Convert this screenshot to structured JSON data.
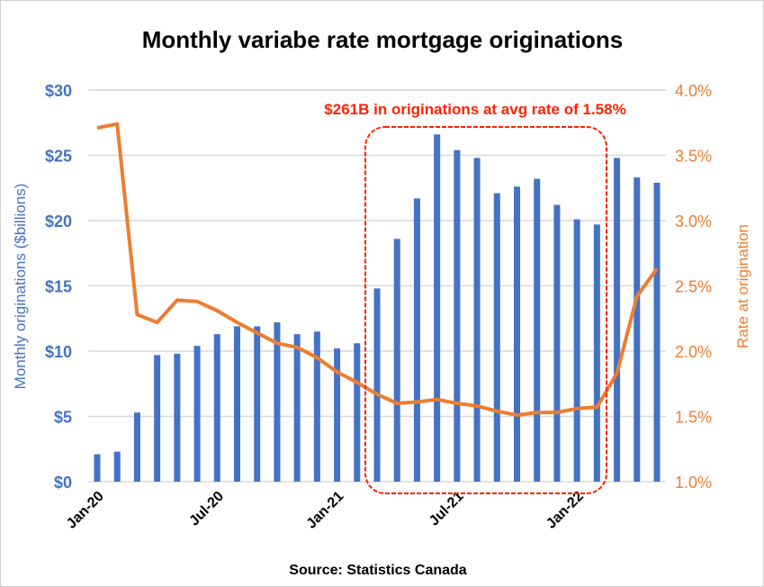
{
  "chart_data": {
    "type": "bar+line",
    "title": "Monthly variabe rate mortgage originations",
    "source": "Source: Statistics Canada",
    "ylabel_left": "Monthly originations ($billions)",
    "ylabel_right": "Rate at origination",
    "ylim_left": [
      0,
      30
    ],
    "ylim_right": [
      1.0,
      4.0
    ],
    "yticks_left": [
      "$0",
      "$5",
      "$10",
      "$15",
      "$20",
      "$25",
      "$30"
    ],
    "yticks_right": [
      "1.0%",
      "1.5%",
      "2.0%",
      "2.5%",
      "3.0%",
      "3.5%",
      "4.0%"
    ],
    "grid": true,
    "categories": [
      "Jan-20",
      "Feb-20",
      "Mar-20",
      "Apr-20",
      "May-20",
      "Jun-20",
      "Jul-20",
      "Aug-20",
      "Sep-20",
      "Oct-20",
      "Nov-20",
      "Dec-20",
      "Jan-21",
      "Feb-21",
      "Mar-21",
      "Apr-21",
      "May-21",
      "Jun-21",
      "Jul-21",
      "Aug-21",
      "Sep-21",
      "Oct-21",
      "Nov-21",
      "Dec-21",
      "Jan-22",
      "Feb-22",
      "Mar-22",
      "Apr-22",
      "May-22"
    ],
    "xtick_labels": [
      "Jan-20",
      "Jul-20",
      "Jan-21",
      "Jul-21",
      "Jan-22"
    ],
    "series": [
      {
        "name": "Monthly originations ($billions)",
        "type": "bar",
        "axis": "left",
        "color": "#4472C4",
        "values": [
          2.1,
          2.3,
          5.3,
          9.7,
          9.8,
          10.4,
          11.3,
          11.9,
          11.9,
          12.2,
          11.3,
          11.5,
          10.2,
          10.6,
          14.8,
          18.6,
          21.7,
          26.6,
          25.4,
          24.8,
          22.1,
          22.6,
          23.2,
          21.2,
          20.1,
          19.7,
          24.8,
          23.3,
          22.9
        ]
      },
      {
        "name": "Rate at origination (%)",
        "type": "line",
        "axis": "right",
        "color": "#ED7D31",
        "values": [
          3.71,
          3.74,
          2.28,
          2.22,
          2.39,
          2.38,
          2.31,
          2.22,
          2.14,
          2.06,
          2.03,
          1.95,
          1.84,
          1.76,
          1.67,
          1.6,
          1.61,
          1.63,
          1.6,
          1.58,
          1.54,
          1.51,
          1.53,
          1.53,
          1.56,
          1.57,
          1.83,
          2.42,
          2.63
        ]
      }
    ],
    "annotation": {
      "text": "$261B in originations at avg rate of 1.58%",
      "color": "#FF2200",
      "range": [
        "Mar-21",
        "Feb-22"
      ]
    }
  }
}
